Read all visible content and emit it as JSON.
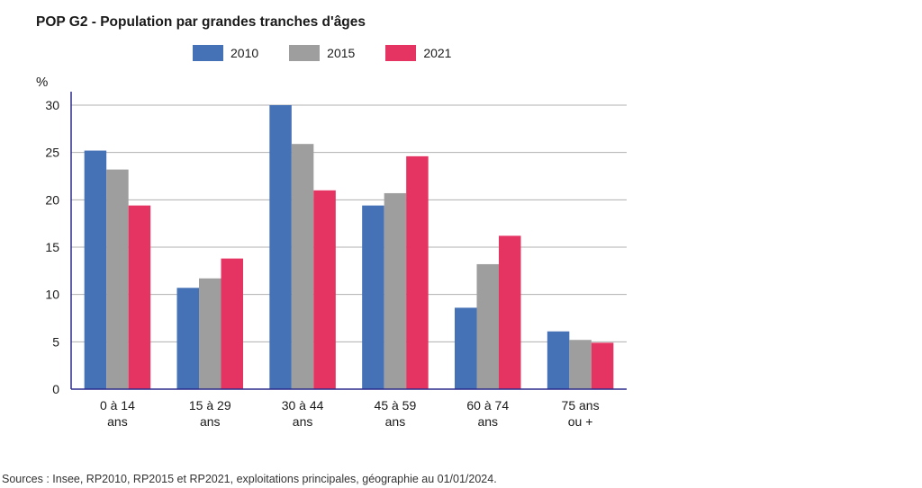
{
  "chart_data": {
    "type": "bar",
    "title": "POP G2 - Population par grandes tranches d'âges",
    "ylabel": "%",
    "xlabel": "",
    "ylim": [
      0,
      30
    ],
    "yticks": [
      0,
      5,
      10,
      15,
      20,
      25,
      30
    ],
    "grid": true,
    "legend_position": "top",
    "categories": [
      [
        "0 à 14",
        "ans"
      ],
      [
        "15 à 29",
        "ans"
      ],
      [
        "30 à 44",
        "ans"
      ],
      [
        "45 à 59",
        "ans"
      ],
      [
        "60 à 74",
        "ans"
      ],
      [
        "75 ans",
        "ou +"
      ]
    ],
    "series": [
      {
        "name": "2010",
        "color": "#4571b6",
        "values": [
          25.2,
          10.7,
          30.0,
          19.4,
          8.6,
          6.1
        ]
      },
      {
        "name": "2015",
        "color": "#9e9e9e",
        "values": [
          23.2,
          11.7,
          25.9,
          20.7,
          13.2,
          5.2
        ]
      },
      {
        "name": "2021",
        "color": "#e63462",
        "values": [
          19.4,
          13.8,
          21.0,
          24.6,
          16.2,
          4.9
        ]
      }
    ]
  },
  "source": "Sources : Insee, RP2010, RP2015 et RP2021, exploitations principales, géographie au 01/01/2024."
}
